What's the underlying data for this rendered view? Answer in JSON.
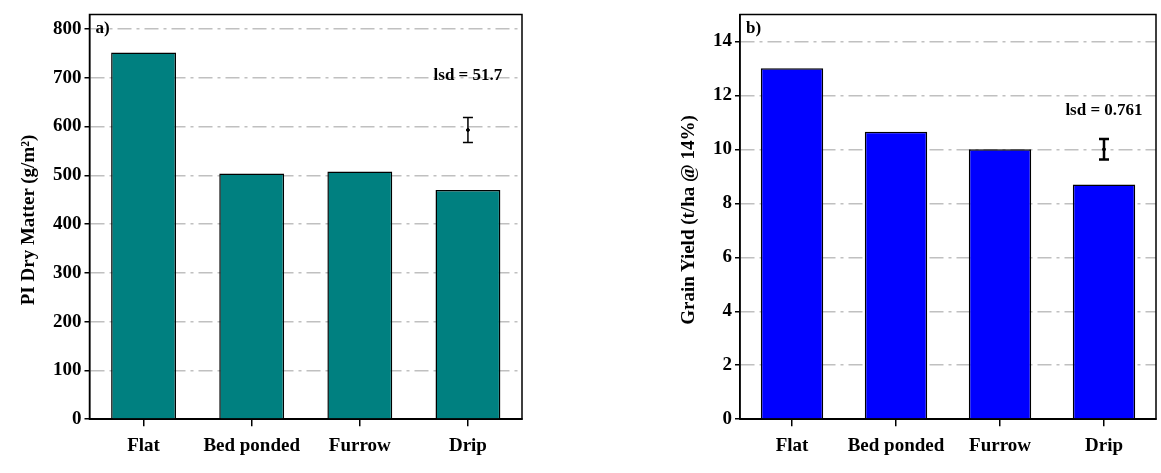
{
  "chart_data": [
    {
      "type": "bar",
      "ylabel": "PI Dry Matter  (g/m²)",
      "categories": [
        "Flat",
        "Bed ponded",
        "Furrow",
        "Drip"
      ],
      "values": [
        752,
        504,
        508,
        470
      ],
      "color": "#008080",
      "ylim": [
        0,
        830
      ],
      "yticks": [
        0,
        100,
        200,
        300,
        400,
        500,
        600,
        700,
        800
      ],
      "grid": "y",
      "series": [
        {
          "type": "scatter",
          "x": [
            "Drip"
          ],
          "values": [
            593
          ],
          "errors": [
            25.85
          ],
          "color": "#000000"
        }
      ],
      "annotations": [
        "a)",
        "lsd = 51.7"
      ]
    },
    {
      "type": "bar",
      "ylabel": "Grain Yield (t/ha @ 14%)",
      "categories": [
        "Flat",
        "Bed ponded",
        "Furrow",
        "Drip"
      ],
      "values": [
        13.0,
        10.65,
        10.0,
        8.7
      ],
      "color": "#0000ff",
      "ylim": [
        0,
        15
      ],
      "yticks": [
        0,
        2,
        4,
        6,
        8,
        10,
        12,
        14
      ],
      "grid": "y",
      "series": [
        {
          "type": "scatter",
          "x": [
            "Drip"
          ],
          "values": [
            10.0
          ],
          "errors": [
            0.3805
          ],
          "color": "#000000"
        }
      ],
      "annotations": [
        "b)",
        "lsd = 0.761"
      ]
    }
  ]
}
